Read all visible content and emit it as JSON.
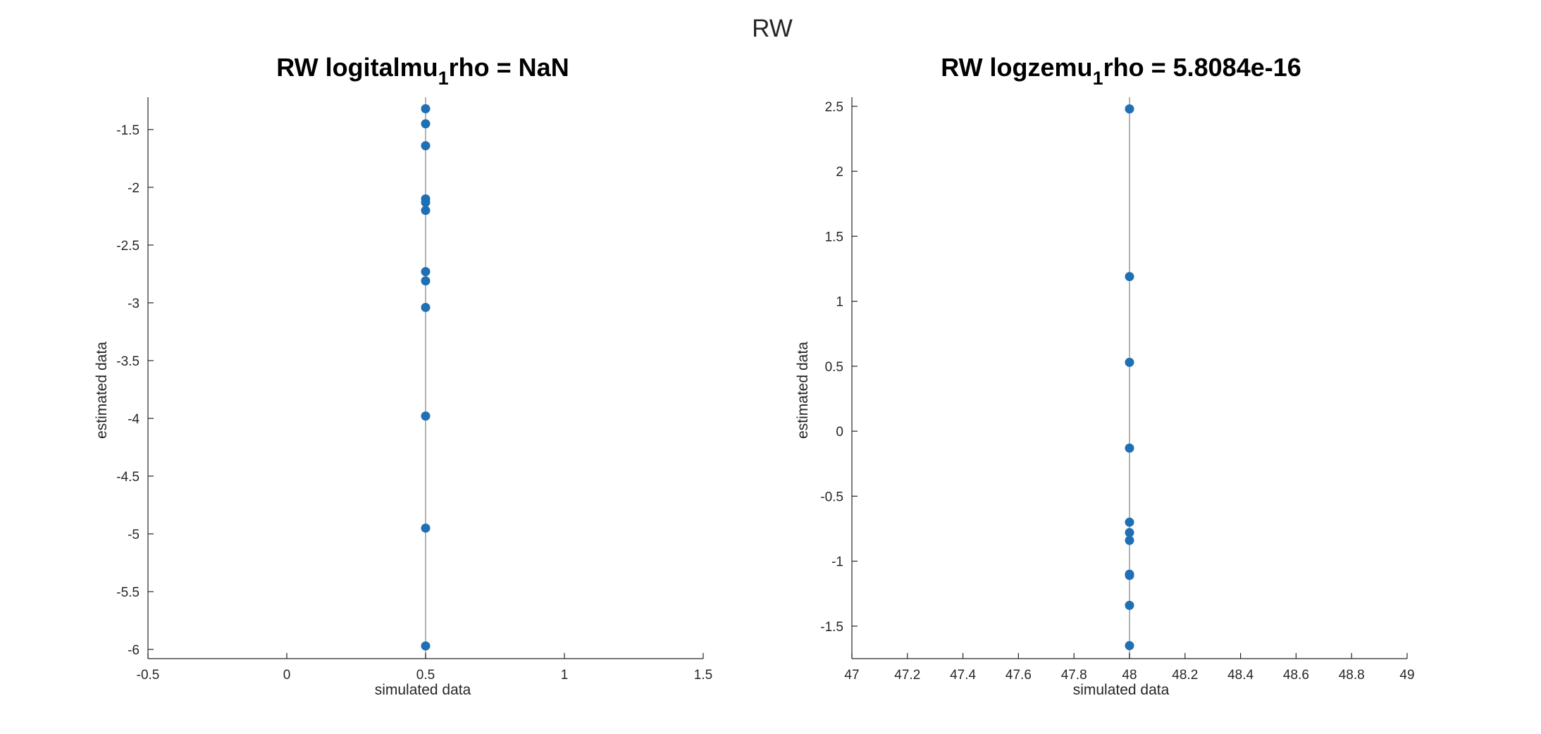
{
  "figure": {
    "title": "RW"
  },
  "chart_data": [
    {
      "type": "scatter",
      "title_parts": [
        "RW logitalmu",
        "1",
        "rho = NaN"
      ],
      "xlabel": "simulated data",
      "ylabel": "estimated data",
      "xlim": [
        -0.5,
        1.5
      ],
      "ylim": [
        -6.08,
        -1.22
      ],
      "xticks": [
        -0.5,
        0,
        0.5,
        1,
        1.5
      ],
      "xtick_labels": [
        "-0.5",
        "0",
        "0.5",
        "1",
        "1.5"
      ],
      "yticks": [
        -6,
        -5.5,
        -5,
        -4.5,
        -4,
        -3.5,
        -3,
        -2.5,
        -2,
        -1.5
      ],
      "ytick_labels": [
        "-6",
        "-5.5",
        "-5",
        "-4.5",
        "-4",
        "-3.5",
        "-3",
        "-2.5",
        "-2",
        "-1.5"
      ],
      "reference_line_x": 0.5,
      "grid": false,
      "marker_color": "#1f6fb4",
      "line_color": "#999999",
      "points": [
        {
          "x": 0.5,
          "y": -1.32
        },
        {
          "x": 0.5,
          "y": -1.45
        },
        {
          "x": 0.5,
          "y": -1.64
        },
        {
          "x": 0.5,
          "y": -2.1
        },
        {
          "x": 0.5,
          "y": -2.13
        },
        {
          "x": 0.5,
          "y": -2.2
        },
        {
          "x": 0.5,
          "y": -2.73
        },
        {
          "x": 0.5,
          "y": -2.81
        },
        {
          "x": 0.5,
          "y": -3.04
        },
        {
          "x": 0.5,
          "y": -3.98
        },
        {
          "x": 0.5,
          "y": -4.95
        },
        {
          "x": 0.5,
          "y": -5.97
        }
      ]
    },
    {
      "type": "scatter",
      "title_parts": [
        "RW logzemu",
        "1",
        "rho = 5.8084e-16"
      ],
      "xlabel": "simulated data",
      "ylabel": "estimated data",
      "xlim": [
        47,
        49
      ],
      "ylim": [
        -1.75,
        2.57
      ],
      "xticks": [
        47,
        47.2,
        47.4,
        47.6,
        47.8,
        48,
        48.2,
        48.4,
        48.6,
        48.8,
        49
      ],
      "xtick_labels": [
        "47",
        "47.2",
        "47.4",
        "47.6",
        "47.8",
        "48",
        "48.2",
        "48.4",
        "48.6",
        "48.8",
        "49"
      ],
      "yticks": [
        -1.5,
        -1,
        -0.5,
        0,
        0.5,
        1,
        1.5,
        2,
        2.5
      ],
      "ytick_labels": [
        "-1.5",
        "-1",
        "-0.5",
        "0",
        "0.5",
        "1",
        "1.5",
        "2",
        "2.5"
      ],
      "reference_line_x": 48,
      "grid": false,
      "marker_color": "#1f6fb4",
      "line_color": "#999999",
      "points": [
        {
          "x": 48,
          "y": 2.48
        },
        {
          "x": 48,
          "y": 1.19
        },
        {
          "x": 48,
          "y": 0.53
        },
        {
          "x": 48,
          "y": -0.13
        },
        {
          "x": 48,
          "y": -0.7
        },
        {
          "x": 48,
          "y": -0.78
        },
        {
          "x": 48,
          "y": -0.84
        },
        {
          "x": 48,
          "y": -1.1
        },
        {
          "x": 48,
          "y": -1.11
        },
        {
          "x": 48,
          "y": -1.34
        },
        {
          "x": 48,
          "y": -1.65
        }
      ]
    }
  ]
}
